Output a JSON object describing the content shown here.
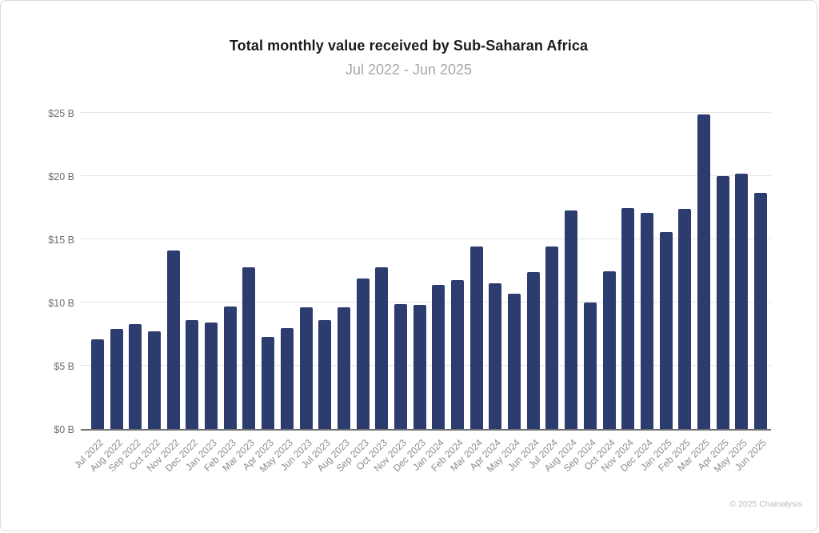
{
  "page": {
    "title": "Total monthly value received by Sub-Saharan Africa",
    "subtitle": "Jul 2022 - Jun 2025",
    "footer_credit": "© 2025 Chainalysis"
  },
  "colors": {
    "background": "#ffffff",
    "border": "#dcdcdc",
    "bar": "#2c3c6e",
    "gridline": "#e4e4e4",
    "axis_line": "#707070",
    "y_label": "#6e6e6e",
    "x_label": "#8c8c8c",
    "title": "#1b1b1b",
    "subtitle": "#a8a8a8",
    "footer": "#bdbdbd"
  },
  "chart_data": {
    "type": "bar",
    "title": "Total monthly value received by Sub-Saharan Africa",
    "subtitle": "Jul 2022 - Jun 2025",
    "unit": "USD billions",
    "xlabel": "",
    "ylabel": "",
    "ylim": [
      0,
      25
    ],
    "grid": "horizontal",
    "legend": "none",
    "yticks": {
      "values": [
        0,
        5,
        10,
        15,
        20,
        25
      ],
      "labels": [
        "$0 B",
        "$5 B",
        "$10 B",
        "$15 B",
        "$20 B",
        "$25 B"
      ]
    },
    "categories": [
      "Jul 2022",
      "Aug 2022",
      "Sep 2022",
      "Oct 2022",
      "Nov 2022",
      "Dec 2022",
      "Jan 2023",
      "Feb 2023",
      "Mar 2023",
      "Apr 2023",
      "May 2023",
      "Jun 2023",
      "Jul 2023",
      "Aug 2023",
      "Sep 2023",
      "Oct 2023",
      "Nov 2023",
      "Dec 2023",
      "Jan 2024",
      "Feb 2024",
      "Mar 2024",
      "Apr 2024",
      "May 2024",
      "Jun 2024",
      "Jul 2024",
      "Aug 2024",
      "Sep 2024",
      "Oct 2024",
      "Nov 2024",
      "Dec 2024",
      "Jan 2025",
      "Feb 2025",
      "Mar 2025",
      "Apr 2025",
      "May 2025",
      "Jun 2025"
    ],
    "values": [
      7.1,
      7.9,
      8.3,
      7.7,
      14.1,
      8.6,
      8.4,
      9.7,
      12.8,
      7.3,
      8.0,
      9.6,
      8.6,
      9.6,
      11.9,
      12.8,
      9.9,
      9.8,
      11.4,
      11.8,
      14.4,
      11.5,
      10.7,
      12.4,
      14.4,
      17.3,
      10.0,
      12.5,
      17.5,
      17.1,
      15.6,
      17.4,
      24.9,
      20.0,
      20.2,
      18.7
    ]
  }
}
